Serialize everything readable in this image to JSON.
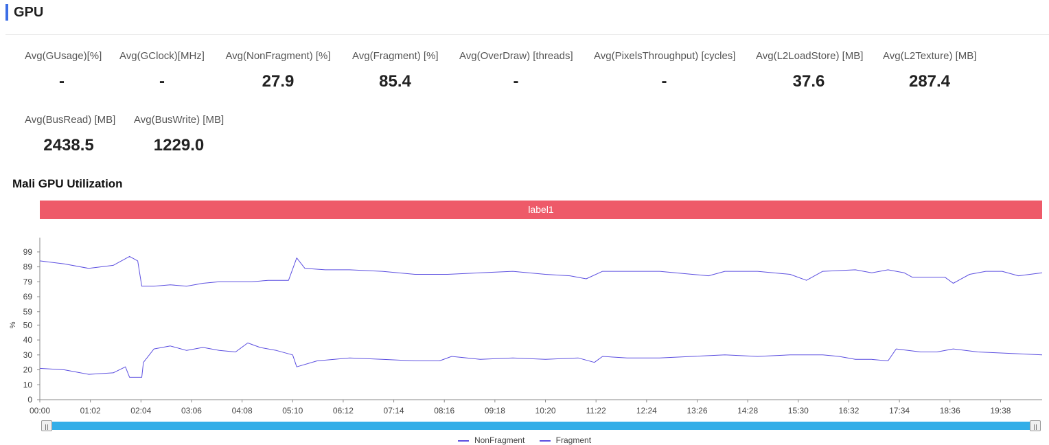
{
  "header": {
    "title": "GPU",
    "accent": "#3c6ee6"
  },
  "metrics": [
    {
      "label": "Avg(GUsage)[%]",
      "value": "-"
    },
    {
      "label": "Avg(GClock)[MHz]",
      "value": "-"
    },
    {
      "label": "Avg(NonFragment) [%]",
      "value": "27.9"
    },
    {
      "label": "Avg(Fragment) [%]",
      "value": "85.4"
    },
    {
      "label": "Avg(OverDraw) [threads]",
      "value": "-"
    },
    {
      "label": "Avg(PixelsThroughput) [cycles]",
      "value": "-"
    },
    {
      "label": "Avg(L2LoadStore) [MB]",
      "value": "37.6"
    },
    {
      "label": "Avg(L2Texture) [MB]",
      "value": "287.4"
    },
    {
      "label": "Avg(BusRead) [MB]",
      "value": "2438.5"
    },
    {
      "label": "Avg(BusWrite) [MB]",
      "value": "1229.0"
    }
  ],
  "chart_data": {
    "type": "line",
    "title": "Mali GPU Utilization",
    "banner_label": "label1",
    "banner_color": "#ee5a69",
    "ylabel": "%",
    "xlabel": "",
    "yticks": [
      0,
      10,
      20,
      30,
      40,
      50,
      59,
      69,
      79,
      89,
      99
    ],
    "ylim": [
      0,
      104
    ],
    "xlim_seconds": [
      0,
      1229
    ],
    "xticks": [
      "00:00",
      "01:02",
      "02:04",
      "03:06",
      "04:08",
      "05:10",
      "06:12",
      "07:14",
      "08:16",
      "09:18",
      "10:20",
      "11:22",
      "12:24",
      "13:26",
      "14:28",
      "15:30",
      "16:32",
      "17:34",
      "18:36",
      "19:38"
    ],
    "legend_position": "bottom-center",
    "line_color": "#5b4ee0",
    "series": [
      {
        "name": "NonFragment",
        "points": [
          [
            0,
            21
          ],
          [
            30,
            20
          ],
          [
            60,
            17
          ],
          [
            90,
            18
          ],
          [
            105,
            22
          ],
          [
            110,
            15
          ],
          [
            125,
            15
          ],
          [
            127,
            25
          ],
          [
            140,
            34
          ],
          [
            160,
            36
          ],
          [
            180,
            33
          ],
          [
            200,
            35
          ],
          [
            220,
            33
          ],
          [
            240,
            32
          ],
          [
            255,
            38
          ],
          [
            270,
            35
          ],
          [
            290,
            33
          ],
          [
            310,
            30
          ],
          [
            315,
            22
          ],
          [
            340,
            26
          ],
          [
            380,
            28
          ],
          [
            420,
            27
          ],
          [
            460,
            26
          ],
          [
            490,
            26
          ],
          [
            505,
            29
          ],
          [
            540,
            27
          ],
          [
            580,
            28
          ],
          [
            620,
            27
          ],
          [
            660,
            28
          ],
          [
            680,
            25
          ],
          [
            690,
            29
          ],
          [
            720,
            28
          ],
          [
            760,
            28
          ],
          [
            800,
            29
          ],
          [
            840,
            30
          ],
          [
            880,
            29
          ],
          [
            920,
            30
          ],
          [
            960,
            30
          ],
          [
            980,
            29
          ],
          [
            1000,
            27
          ],
          [
            1020,
            27
          ],
          [
            1040,
            26
          ],
          [
            1050,
            34
          ],
          [
            1080,
            32
          ],
          [
            1100,
            32
          ],
          [
            1120,
            34
          ],
          [
            1150,
            32
          ],
          [
            1190,
            31
          ],
          [
            1229,
            30
          ]
        ]
      },
      {
        "name": "Fragment",
        "points": [
          [
            0,
            93
          ],
          [
            30,
            91
          ],
          [
            60,
            88
          ],
          [
            90,
            90
          ],
          [
            100,
            93
          ],
          [
            110,
            96
          ],
          [
            120,
            93
          ],
          [
            125,
            76
          ],
          [
            140,
            76
          ],
          [
            160,
            77
          ],
          [
            180,
            76
          ],
          [
            200,
            78
          ],
          [
            220,
            79
          ],
          [
            240,
            79
          ],
          [
            260,
            79
          ],
          [
            280,
            80
          ],
          [
            305,
            80
          ],
          [
            315,
            95
          ],
          [
            325,
            88
          ],
          [
            350,
            87
          ],
          [
            380,
            87
          ],
          [
            420,
            86
          ],
          [
            460,
            84
          ],
          [
            500,
            84
          ],
          [
            540,
            85
          ],
          [
            580,
            86
          ],
          [
            620,
            84
          ],
          [
            650,
            83
          ],
          [
            670,
            81
          ],
          [
            690,
            86
          ],
          [
            720,
            86
          ],
          [
            760,
            86
          ],
          [
            800,
            84
          ],
          [
            820,
            83
          ],
          [
            840,
            86
          ],
          [
            880,
            86
          ],
          [
            920,
            84
          ],
          [
            940,
            80
          ],
          [
            960,
            86
          ],
          [
            1000,
            87
          ],
          [
            1020,
            85
          ],
          [
            1040,
            87
          ],
          [
            1060,
            85
          ],
          [
            1070,
            82
          ],
          [
            1080,
            82
          ],
          [
            1110,
            82
          ],
          [
            1120,
            78
          ],
          [
            1140,
            84
          ],
          [
            1160,
            86
          ],
          [
            1180,
            86
          ],
          [
            1200,
            83
          ],
          [
            1229,
            85
          ]
        ]
      }
    ]
  },
  "slider": {
    "track_color": "#33aee8"
  }
}
